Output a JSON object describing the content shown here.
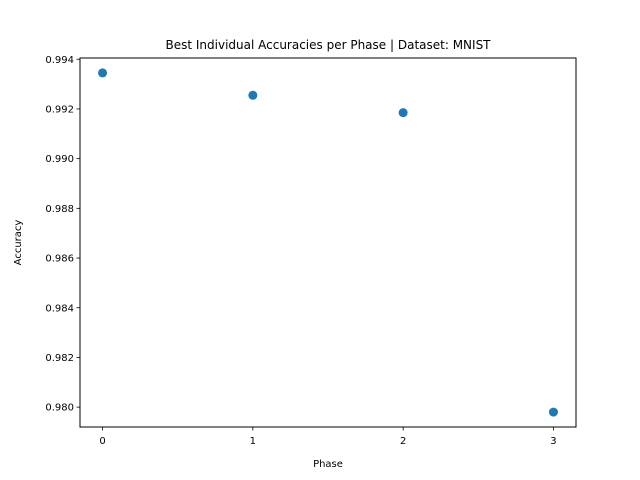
{
  "chart_data": {
    "type": "scatter",
    "title": "Best Individual Accuracies per Phase | Dataset: MNIST",
    "xlabel": "Phase",
    "ylabel": "Accuracy",
    "x": [
      0,
      1,
      2,
      3
    ],
    "series": [
      {
        "values": [
          0.99345,
          0.99255,
          0.99185,
          0.9798
        ]
      }
    ],
    "xlim": [
      -0.15,
      3.15
    ],
    "ylim": [
      0.9792,
      0.99405
    ],
    "xticks": [
      0,
      1,
      2,
      3
    ],
    "xtick_labels": [
      "0",
      "1",
      "2",
      "3"
    ],
    "yticks": [
      0.98,
      0.982,
      0.984,
      0.986,
      0.988,
      0.99,
      0.992,
      0.994
    ],
    "ytick_labels": [
      "0.980",
      "0.982",
      "0.984",
      "0.986",
      "0.988",
      "0.990",
      "0.992",
      "0.994"
    ],
    "grid": false,
    "marker_color": "#1f77b4"
  }
}
